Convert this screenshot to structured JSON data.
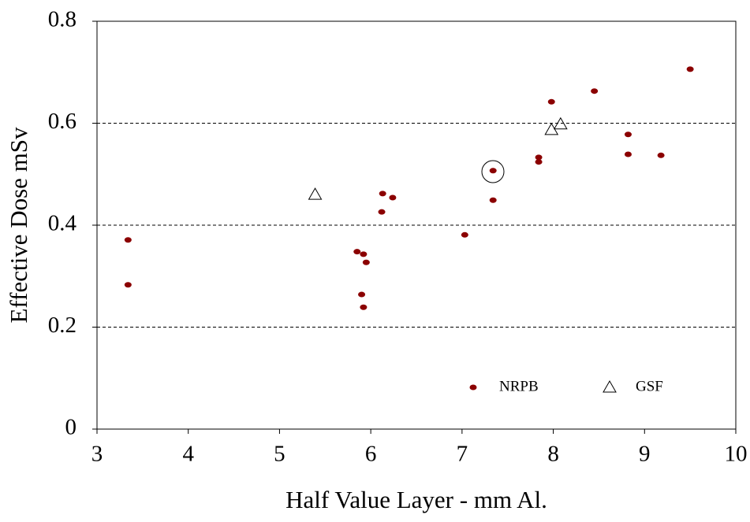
{
  "chart_data": {
    "type": "scatter",
    "x_label": "Half Value Layer - mm Al.",
    "y_label": "Effective Dose mSv",
    "xlim": [
      3,
      10
    ],
    "xticks": [
      3,
      4,
      5,
      6,
      7,
      8,
      9,
      10
    ],
    "ylim": [
      0,
      0.8
    ],
    "yticks": [
      0,
      0.2,
      0.4,
      0.6,
      0.8
    ],
    "grid": true,
    "series": [
      {
        "name": "NRPB",
        "color": "#8b0000",
        "marker": "dot",
        "x": [
          3.34,
          3.34,
          5.85,
          5.92,
          5.95,
          5.9,
          5.92,
          6.13,
          6.12,
          6.24,
          7.03,
          7.34,
          7.34,
          7.84,
          7.84,
          7.98,
          8.45,
          8.82,
          8.82,
          9.18,
          9.5
        ],
        "values": [
          0.371,
          0.283,
          0.348,
          0.343,
          0.327,
          0.264,
          0.239,
          0.462,
          0.426,
          0.454,
          0.381,
          0.507,
          0.449,
          0.533,
          0.524,
          0.642,
          0.663,
          0.578,
          0.539,
          0.537,
          0.706
        ]
      },
      {
        "name": "GSF",
        "color": "#000000",
        "marker": "triangle",
        "x": [
          5.39,
          7.98,
          8.08
        ],
        "values": [
          0.46,
          0.587,
          0.598
        ]
      }
    ]
  }
}
